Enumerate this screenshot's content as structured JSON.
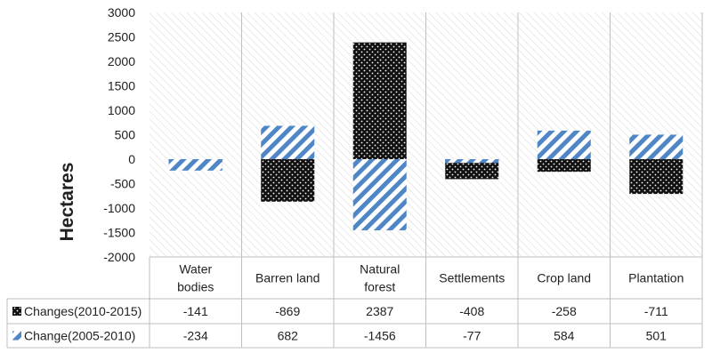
{
  "chart_data": {
    "type": "bar",
    "ylabel": "Hectares",
    "ylim": [
      -2000,
      3000
    ],
    "yticks": [
      3000,
      2500,
      2000,
      1500,
      1000,
      500,
      0,
      -500,
      -1000,
      -1500,
      -2000
    ],
    "grid": false,
    "legend": "data-table-left",
    "categories": [
      [
        "Water",
        "bodies"
      ],
      [
        "Barren land"
      ],
      [
        "Natural",
        "forest"
      ],
      [
        "Settlements"
      ],
      [
        "Crop land"
      ],
      [
        "Plantation"
      ]
    ],
    "series": [
      {
        "name": "Changes(2010-2015)",
        "pattern": "dots",
        "color": "#111111",
        "values": [
          -141,
          -869,
          2387,
          -408,
          -258,
          -711
        ]
      },
      {
        "name": "Change(2005-2010)",
        "pattern": "stripes",
        "color": "#4f86c6",
        "values": [
          -234,
          682,
          -1456,
          -77,
          584,
          501
        ]
      }
    ]
  }
}
